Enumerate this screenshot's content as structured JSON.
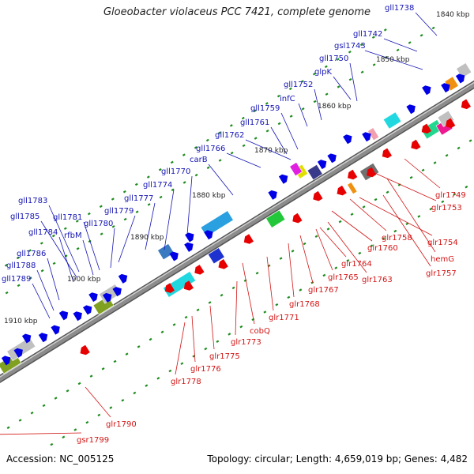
{
  "title": "Gloeobacter violaceus PCC 7421, complete genome",
  "footer": {
    "accession": "Accession: NC_005125",
    "summary": "Topology: circular; Length: 4,659,019 bp; Genes: 4,482"
  },
  "colors": {
    "forward_gene": "#0000e6",
    "reverse_gene": "#e60000",
    "forward_label": "#1414b4",
    "reverse_label": "#d21414",
    "backbone": "#8c8c8c",
    "tick": "#1e8c1e"
  },
  "ticks": [
    "1840 kbp",
    "1850 kbp",
    "1860 kbp",
    "1870 kbp",
    "1880 kbp",
    "1890 kbp",
    "1900 kbp",
    "1910 kbp"
  ],
  "forward_genes": [
    "gll1738",
    "gll1742",
    "gsl1743",
    "gll1750",
    "glpK",
    "gll1752",
    "infC",
    "gll1759",
    "gll1761",
    "gll1762",
    "gll1766",
    "carB",
    "gll1770",
    "gll1774",
    "gll1777",
    "gll1779",
    "gll1780",
    "gll1781",
    "rfbM",
    "gll1783",
    "gll1785",
    "gll1784",
    "gll1786",
    "gll1788",
    "gll1789"
  ],
  "reverse_genes": [
    "glr1749",
    "glr1753",
    "glr1754",
    "hemG",
    "glr1757",
    "glr1758",
    "glr1760",
    "glr1764",
    "glr1763",
    "glr1765",
    "glr1767",
    "glr1768",
    "glr1771",
    "cobQ",
    "glr1773",
    "glr1775",
    "glr1776",
    "glr1778",
    "glr1790",
    "gsr1799"
  ]
}
